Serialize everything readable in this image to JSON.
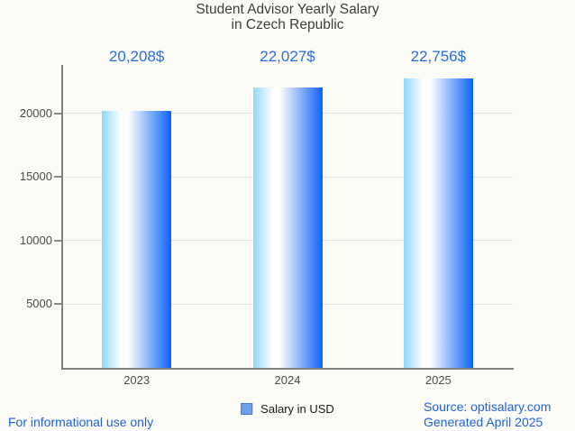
{
  "page": {
    "background": "#fbfbf7"
  },
  "title": {
    "lines": [
      "Student Advisor Yearly Salary",
      "in Czech Republic"
    ],
    "color": "#3e3e3e"
  },
  "legend": {
    "label": "Salary in USD",
    "swatch_fill": "#6f9fe8",
    "swatch_border": "#4a7dc0",
    "position": "bottom-center"
  },
  "footer": {
    "left_text": "For informational use only",
    "source_text": "Source: optisalary.com",
    "generated_text": "Generated April 2025",
    "color": "#2161e0"
  },
  "chart_data": {
    "type": "bar",
    "title": "Student Advisor Yearly Salary in Czech Republic",
    "categories": [
      "2023",
      "2024",
      "2025"
    ],
    "values": [
      20208,
      22027,
      22756
    ],
    "value_labels": [
      "20,208$",
      "22,027$",
      "22,756$"
    ],
    "series": [
      {
        "name": "Salary in USD",
        "values": [
          20208,
          22027,
          22756
        ]
      }
    ],
    "xlabel": "",
    "ylabel": "",
    "yticks": [
      5000,
      10000,
      15000,
      20000
    ],
    "ylim": [
      0,
      23800
    ],
    "grid": true,
    "legend_position": "bottom",
    "value_label_color": "#2a6cf0",
    "bar_gradient": [
      "#8ed9f9",
      "#ffffff",
      "#0b62f6"
    ],
    "axis_color": "#808080",
    "grid_color": "#e3e3e3",
    "tick_label_color": "#4c4c4c"
  }
}
